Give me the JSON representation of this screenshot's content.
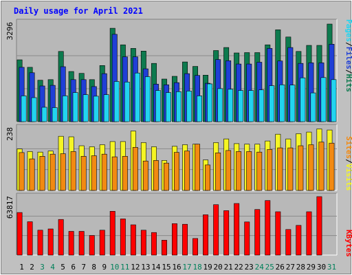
{
  "chart_data": {
    "type": "bar",
    "title": "Daily usage for April 2021",
    "days": [
      "1",
      "2",
      "3",
      "4",
      "5",
      "6",
      "7",
      "8",
      "9",
      "10",
      "11",
      "12",
      "13",
      "14",
      "15",
      "16",
      "17",
      "18",
      "19",
      "20",
      "21",
      "22",
      "23",
      "24",
      "25",
      "26",
      "27",
      "28",
      "29",
      "30",
      "31"
    ],
    "weekend_days": [
      "3",
      "4",
      "10",
      "11",
      "17",
      "18",
      "24",
      "25",
      "31"
    ],
    "panels": [
      {
        "id": "hits-panel",
        "ymax_label": "3296",
        "ymax": 3296,
        "series": [
          {
            "name": "Hits",
            "color": "#0d7a4e",
            "values": [
              2060,
              1810,
              1380,
              1400,
              2340,
              1670,
              1610,
              1400,
              1870,
              3110,
              2560,
              2440,
              2350,
              1940,
              1420,
              1510,
              1990,
              1840,
              1550,
              2370,
              2470,
              2290,
              2300,
              2300,
              2560,
              3060,
              2820,
              2340,
              2540,
              2540,
              3250
            ]
          },
          {
            "name": "Files",
            "color": "#1f3fd6",
            "values": [
              1810,
              1630,
              1190,
              1210,
              1830,
              1400,
              1400,
              1170,
              1600,
              2910,
              2160,
              2160,
              1760,
              1250,
              1230,
              1300,
              1600,
              1540,
              1280,
              2070,
              2030,
              1920,
              1920,
              1980,
              2440,
              2020,
              2470,
              1940,
              1960,
              1960,
              2580
            ]
          },
          {
            "name": "Pages",
            "color": "#22d4f0",
            "values": [
              860,
              800,
              480,
              470,
              860,
              970,
              900,
              850,
              900,
              1340,
              1320,
              1620,
              1500,
              1040,
              970,
              1000,
              1020,
              860,
              1260,
              1100,
              1080,
              1040,
              1040,
              1060,
              1200,
              1230,
              1220,
              1460,
              960,
              1470,
              1400
            ]
          }
        ]
      },
      {
        "id": "visits-panel",
        "ymax_label": "238",
        "ymax": 238,
        "series": [
          {
            "name": "Visits",
            "color": "#f5f524",
            "values": [
              158,
              148,
              146,
              150,
              206,
              204,
              170,
              166,
              174,
              186,
              186,
              226,
              182,
              166,
              114,
              168,
              174,
              176,
              116,
              182,
              196,
              178,
              176,
              176,
              188,
              214,
              196,
              216,
              222,
              234,
              230
            ]
          },
          {
            "name": "Sites",
            "color": "#f28a12",
            "values": [
              144,
              120,
              130,
              138,
              140,
              148,
              130,
              132,
              138,
              128,
              130,
              164,
              112,
              114,
              104,
              145,
              150,
              176,
              97,
              143,
              152,
              148,
              148,
              146,
              156,
              162,
              162,
              170,
              174,
              184,
              180
            ]
          }
        ]
      },
      {
        "id": "kbytes-panel",
        "ymax_label": "63817",
        "ymax": 63817,
        "series": [
          {
            "name": "KBytes",
            "color": "#ff0000",
            "values": [
              46500,
              36400,
              27200,
              28500,
              38900,
              25900,
              25900,
              21400,
              27200,
              47800,
              39500,
              33000,
              27200,
              24600,
              16200,
              34300,
              33600,
              18100,
              44000,
              55000,
              48500,
              56300,
              36200,
              49800,
              59500,
              47300,
              27900,
              32400,
              47300,
              69200,
              0
            ]
          }
        ]
      }
    ],
    "right_labels": {
      "top": [
        {
          "text": "Pages",
          "color": "#22d4f0"
        },
        {
          "text": "/",
          "color": "#000000"
        },
        {
          "text": "Files",
          "color": "#1f3fd6"
        },
        {
          "text": "/",
          "color": "#000000"
        },
        {
          "text": "Hits",
          "color": "#0d7a4e"
        }
      ],
      "mid": [
        {
          "text": "Sites",
          "color": "#f28a12"
        },
        {
          "text": "/",
          "color": "#000000"
        },
        {
          "text": "Visits",
          "color": "#f5f524"
        }
      ],
      "bottom": [
        {
          "text": "KBytes",
          "color": "#ff0000"
        }
      ]
    },
    "colors": {
      "frame_bg": "#c0c0c0",
      "plot_bg": "#b8b8b8",
      "title": "#0000ff",
      "weekday_label": "#000000",
      "weekend_label": "#00805a"
    }
  }
}
